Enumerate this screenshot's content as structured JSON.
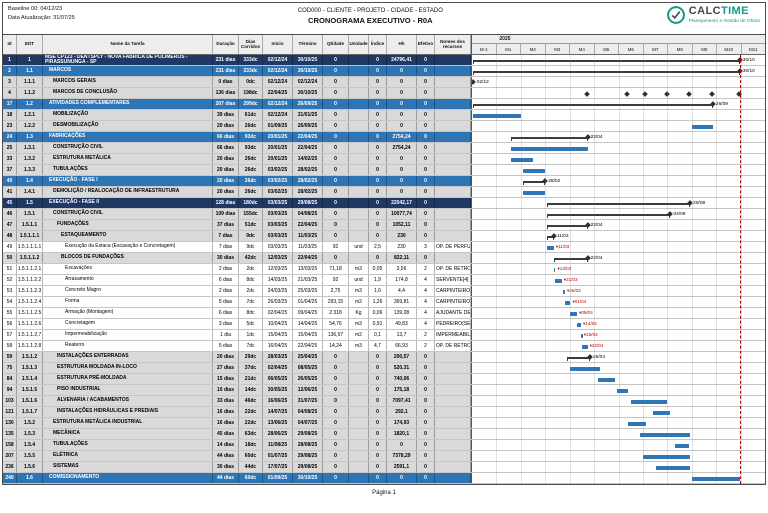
{
  "meta": {
    "baseline": "Baseline 00: 04/12/23",
    "update": "Data Atualização: 31/07/25",
    "code_line": "COD000 - CLIENTE - PROJETO - CIDADE - ESTADO",
    "title": "CRONOGRAMA EXECUTIVO - R0A",
    "footer": "Página 1"
  },
  "logo": {
    "name_part1": "CALC",
    "name_part2": "TIME",
    "tagline": "Planejamento e Gestão de Obras"
  },
  "columns": [
    "Id",
    "EDT",
    "Nome da Tarefa",
    "Duração",
    "Dias Corridos",
    "Início",
    "Término",
    "Qtidade",
    "Unidade",
    "Índice",
    "Hh",
    "Efetivo",
    "Nomes dos recursos"
  ],
  "timeline": {
    "year": "2025",
    "months": [
      "M-1",
      "M1",
      "M2",
      "M3",
      "M4",
      "M5",
      "M6",
      "M7",
      "M8",
      "M9",
      "M10",
      "M11"
    ],
    "finish_line_date": "30/10/25"
  },
  "colors": {
    "project_row": "#1f3864",
    "phase_row": "#2e75b6",
    "summary_row": "#d9d9d9",
    "task_bar": "#2e75b6",
    "summary_bar": "#3b3b3b",
    "annotation_red": "#c00000",
    "logo_teal": "#139a8c"
  },
  "rows": [
    {
      "id": "1",
      "edt": "1",
      "name": "MSE CP123 - DENTSPLY - NOVA FABRICA DE POLÍMEROS - PIRASSUNUNGA - SP",
      "dur": "231 dias",
      "dc": "333dc",
      "start": "02/12/24",
      "end": "30/10/25",
      "qty": "0",
      "unit": "",
      "idx": "0",
      "hh": "24796,41",
      "ef": "0",
      "rec": "",
      "style": "project",
      "level": 0,
      "bar": {
        "type": "summary",
        "label": "30/10",
        "endDiamond": true
      }
    },
    {
      "id": "2",
      "edt": "1.1",
      "name": "MARCOS",
      "dur": "231 dias",
      "dc": "333dc",
      "start": "02/12/24",
      "end": "30/10/25",
      "qty": "0",
      "unit": "",
      "idx": "0",
      "hh": "0",
      "ef": "0",
      "rec": "",
      "style": "phase",
      "level": 1,
      "bar": {
        "type": "summary",
        "label": "30/10",
        "endDiamond": true
      }
    },
    {
      "id": "3",
      "edt": "1.1.1",
      "name": "MARCOS GERAIS",
      "dur": "0 dias",
      "dc": "0dc",
      "start": "02/12/24",
      "end": "02/12/24",
      "qty": "0",
      "unit": "",
      "idx": "0",
      "hh": "0",
      "ef": "0",
      "rec": "",
      "style": "summary",
      "level": 2,
      "bar": {
        "type": "milestone",
        "label": "02/12"
      }
    },
    {
      "id": "4",
      "edt": "1.1.2",
      "name": "MARCOS DE CONCLUSÃO",
      "dur": "136 dias",
      "dc": "198dc",
      "start": "22/04/25",
      "end": "30/10/25",
      "qty": "0",
      "unit": "",
      "idx": "0",
      "hh": "0",
      "ef": "0",
      "rec": "",
      "style": "summary",
      "level": 2,
      "milestones": [
        "22/04/25",
        "12/06/25",
        "04/07/25",
        "31/07/25",
        "29/08/25",
        "26/09/25",
        "30/10/25"
      ]
    },
    {
      "id": "17",
      "edt": "1.2",
      "name": "ATIVIDADES COMPLEMENTARES",
      "dur": "207 dias",
      "dc": "299dc",
      "start": "02/12/24",
      "end": "26/09/25",
      "qty": "0",
      "unit": "",
      "idx": "0",
      "hh": "0",
      "ef": "0",
      "rec": "",
      "style": "phase",
      "level": 1,
      "bar": {
        "type": "summary",
        "label": "26/09",
        "endDiamond": true
      }
    },
    {
      "id": "18",
      "edt": "1.2.1",
      "name": "MOBILIZAÇÃO",
      "dur": "39 dias",
      "dc": "61dc",
      "start": "02/12/24",
      "end": "31/01/25",
      "qty": "0",
      "unit": "",
      "idx": "0",
      "hh": "0",
      "ef": "0",
      "rec": "",
      "style": "summary",
      "level": 2,
      "bar": {
        "type": "task"
      }
    },
    {
      "id": "23",
      "edt": "1.2.2",
      "name": "DESMOBILIZAÇÃO",
      "dur": "20 dias",
      "dc": "26dc",
      "start": "01/09/25",
      "end": "26/09/25",
      "qty": "0",
      "unit": "",
      "idx": "0",
      "hh": "0",
      "ef": "0",
      "rec": "",
      "style": "summary",
      "level": 2,
      "bar": {
        "type": "task"
      }
    },
    {
      "id": "24",
      "edt": "1.3",
      "name": "FABRICAÇÕES",
      "dur": "66 dias",
      "dc": "93dc",
      "start": "20/01/25",
      "end": "22/04/25",
      "qty": "0",
      "unit": "",
      "idx": "0",
      "hh": "2754,24",
      "ef": "0",
      "rec": "",
      "style": "phase",
      "level": 1,
      "bar": {
        "type": "summary",
        "label": "22/04",
        "endDiamond": true
      }
    },
    {
      "id": "25",
      "edt": "1.3.1",
      "name": "CONSTRUÇÃO CIVIL",
      "dur": "66 dias",
      "dc": "93dc",
      "start": "20/01/25",
      "end": "22/04/25",
      "qty": "0",
      "unit": "",
      "idx": "0",
      "hh": "2754,24",
      "ef": "0",
      "rec": "",
      "style": "summary",
      "level": 2,
      "bar": {
        "type": "task"
      }
    },
    {
      "id": "33",
      "edt": "1.3.2",
      "name": "ESTRUTURA METÁLICA",
      "dur": "20 dias",
      "dc": "26dc",
      "start": "20/01/25",
      "end": "14/02/25",
      "qty": "0",
      "unit": "",
      "idx": "0",
      "hh": "0",
      "ef": "0",
      "rec": "",
      "style": "summary",
      "level": 2,
      "bar": {
        "type": "task"
      }
    },
    {
      "id": "37",
      "edt": "1.3.3",
      "name": "TUBULAÇÕES",
      "dur": "20 dias",
      "dc": "26dc",
      "start": "03/02/25",
      "end": "28/02/25",
      "qty": "0",
      "unit": "",
      "idx": "0",
      "hh": "0",
      "ef": "0",
      "rec": "",
      "style": "summary",
      "level": 2,
      "bar": {
        "type": "task"
      }
    },
    {
      "id": "40",
      "edt": "1.4",
      "name": "EXECUÇÃO - FASE I",
      "dur": "20 dias",
      "dc": "26dc",
      "start": "03/02/25",
      "end": "28/02/25",
      "qty": "0",
      "unit": "",
      "idx": "0",
      "hh": "0",
      "ef": "0",
      "rec": "",
      "style": "phase",
      "level": 1,
      "bar": {
        "type": "summary",
        "label": "28/02",
        "endDiamond": true
      }
    },
    {
      "id": "41",
      "edt": "1.4.1",
      "name": "DEMOLIÇÃO / REALOCAÇÃO DE INFRAESTRUTURA",
      "dur": "20 dias",
      "dc": "26dc",
      "start": "03/02/25",
      "end": "28/02/25",
      "qty": "0",
      "unit": "",
      "idx": "0",
      "hh": "0",
      "ef": "0",
      "rec": "",
      "style": "summary",
      "level": 2,
      "bar": {
        "type": "task"
      }
    },
    {
      "id": "45",
      "edt": "1.5",
      "name": "EXECUÇÃO - FASE II",
      "dur": "128 dias",
      "dc": "180dc",
      "start": "03/03/25",
      "end": "29/08/25",
      "qty": "0",
      "unit": "",
      "idx": "0",
      "hh": "22042,17",
      "ef": "0",
      "rec": "",
      "style": "project",
      "level": 1,
      "bar": {
        "type": "summary",
        "label": "29/08",
        "endDiamond": true
      }
    },
    {
      "id": "46",
      "edt": "1.5.1",
      "name": "CONSTRUÇÃO CIVIL",
      "dur": "109 dias",
      "dc": "155dc",
      "start": "03/03/25",
      "end": "04/08/25",
      "qty": "0",
      "unit": "",
      "idx": "0",
      "hh": "10077,74",
      "ef": "0",
      "rec": "",
      "style": "summary",
      "level": 2,
      "bar": {
        "type": "summary",
        "label": "04/08",
        "endDiamond": true
      }
    },
    {
      "id": "47",
      "edt": "1.5.1.1",
      "name": "FUNDAÇÕES",
      "dur": "37 dias",
      "dc": "51dc",
      "start": "03/03/25",
      "end": "22/04/25",
      "qty": "0",
      "unit": "",
      "idx": "0",
      "hh": "1052,11",
      "ef": "0",
      "rec": "",
      "style": "summary",
      "level": 3,
      "bar": {
        "type": "summary",
        "label": "22/04",
        "endDiamond": true
      }
    },
    {
      "id": "48",
      "edt": "1.5.1.1.1",
      "name": "ESTAQUEAMENTO",
      "dur": "7 dias",
      "dc": "9dc",
      "start": "03/03/25",
      "end": "11/03/25",
      "qty": "0",
      "unit": "",
      "idx": "0",
      "hh": "230",
      "ef": "0",
      "rec": "",
      "style": "summary",
      "level": 4,
      "bar": {
        "type": "summary",
        "label": "11/03",
        "endDiamond": true
      }
    },
    {
      "id": "49",
      "edt": "1.5.1.1.1.1",
      "name": "Execução da Estaca (Escavação e Concretagem)",
      "dur": "7 dias",
      "dc": "9dc",
      "start": "03/03/25",
      "end": "11/03/25",
      "qty": "92",
      "unit": "und",
      "idx": "2,5",
      "hh": "230",
      "ef": "3",
      "rec": "OP. DE PERFU",
      "style": "leaf",
      "level": 5,
      "bar": {
        "type": "task"
      },
      "annotation": "11/03"
    },
    {
      "id": "50",
      "edt": "1.5.1.1.2",
      "name": "BLOCOS DE FUNDAÇÕES",
      "dur": "30 dias",
      "dc": "42dc",
      "start": "12/03/25",
      "end": "22/04/25",
      "qty": "0",
      "unit": "",
      "idx": "0",
      "hh": "822,11",
      "ef": "0",
      "rec": "",
      "style": "summary",
      "level": 4,
      "bar": {
        "type": "summary",
        "label": "22/04",
        "endDiamond": true
      }
    },
    {
      "id": "51",
      "edt": "1.5.1.1.2.1",
      "name": "Escavações",
      "dur": "2 dias",
      "dc": "2dc",
      "start": "12/03/25",
      "end": "13/03/25",
      "qty": "71,18",
      "unit": "m3",
      "idx": "0,05",
      "hh": "3,56",
      "ef": "2",
      "rec": "OP. DE RETRO",
      "style": "leaf",
      "level": 5,
      "bar": {
        "type": "task"
      },
      "annotation": "13/03"
    },
    {
      "id": "52",
      "edt": "1.5.1.1.2.2",
      "name": "Arrasamento",
      "dur": "6 dias",
      "dc": "8dc",
      "start": "14/03/25",
      "end": "21/03/25",
      "qty": "92",
      "unit": "und",
      "idx": "1,9",
      "hh": "174,8",
      "ef": "4",
      "rec": "SERVENTE[4]",
      "style": "leaf",
      "level": 5,
      "bar": {
        "type": "task"
      },
      "annotation": "21/03"
    },
    {
      "id": "53",
      "edt": "1.5.1.1.2.3",
      "name": "Concreto Magro",
      "dur": "2 dias",
      "dc": "2dc",
      "start": "24/03/25",
      "end": "25/03/25",
      "qty": "2,75",
      "unit": "m3",
      "idx": "1,6",
      "hh": "4,4",
      "ef": "4",
      "rec": "CARPINTEIRO",
      "style": "leaf",
      "level": 5,
      "bar": {
        "type": "task"
      },
      "annotation": "25/03"
    },
    {
      "id": "54",
      "edt": "1.5.1.1.2.4",
      "name": "Forma",
      "dur": "5 dias",
      "dc": "7dc",
      "start": "26/03/25",
      "end": "01/04/25",
      "qty": "293,15",
      "unit": "m2",
      "idx": "1,26",
      "hh": "369,81",
      "ef": "4",
      "rec": "CARPINTEIRO",
      "style": "leaf",
      "level": 5,
      "bar": {
        "type": "task"
      },
      "annotation": "01/04"
    },
    {
      "id": "55",
      "edt": "1.5.1.1.2.5",
      "name": "Armação (Montagem)",
      "dur": "6 dias",
      "dc": "8dc",
      "start": "02/04/25",
      "end": "09/04/25",
      "qty": "2.318",
      "unit": "Kg",
      "idx": "0,06",
      "hh": "139,08",
      "ef": "4",
      "rec": "AJUDANTE DE",
      "style": "leaf",
      "level": 5,
      "bar": {
        "type": "task"
      },
      "annotation": "09/04"
    },
    {
      "id": "56",
      "edt": "1.5.1.1.2.6",
      "name": "Concretagem",
      "dur": "3 dias",
      "dc": "5dc",
      "start": "10/04/25",
      "end": "14/04/25",
      "qty": "54,76",
      "unit": "m3",
      "idx": "0,91",
      "hh": "49,83",
      "ef": "4",
      "rec": "PEDREIRO(SE",
      "style": "leaf",
      "level": 5,
      "bar": {
        "type": "task"
      },
      "annotation": "14/04"
    },
    {
      "id": "57",
      "edt": "1.5.1.1.2.7",
      "name": "Impermeabilização",
      "dur": "1 dia",
      "dc": "1dc",
      "start": "15/04/25",
      "end": "15/04/25",
      "qty": "136,97",
      "unit": "m2",
      "idx": "0,1",
      "hh": "13,7",
      "ef": "2",
      "rec": "IMPERMEABIL",
      "style": "leaf",
      "level": 5,
      "bar": {
        "type": "task"
      },
      "annotation": "15/04"
    },
    {
      "id": "58",
      "edt": "1.5.1.1.2.8",
      "name": "Reaterro",
      "dur": "5 dias",
      "dc": "7dc",
      "start": "16/04/25",
      "end": "22/04/25",
      "qty": "14,24",
      "unit": "m3",
      "idx": "4,7",
      "hh": "66,93",
      "ef": "2",
      "rec": "OP. DE RETRO",
      "style": "leaf",
      "level": 5,
      "bar": {
        "type": "task"
      },
      "annotation": "22/04"
    },
    {
      "id": "59",
      "edt": "1.5.1.2",
      "name": "INSTALAÇÕES ENTERRADAS",
      "dur": "20 dias",
      "dc": "29dc",
      "start": "28/03/25",
      "end": "25/04/25",
      "qty": "0",
      "unit": "",
      "idx": "0",
      "hh": "200,57",
      "ef": "0",
      "rec": "",
      "style": "summary",
      "level": 3,
      "bar": {
        "type": "summary",
        "label": "25/04",
        "endDiamond": true
      }
    },
    {
      "id": "75",
      "edt": "1.5.1.3",
      "name": "ESTRUTURA MOLDADA IN-LOCO",
      "dur": "27 dias",
      "dc": "37dc",
      "start": "02/04/25",
      "end": "08/05/25",
      "qty": "0",
      "unit": "",
      "idx": "0",
      "hh": "520,31",
      "ef": "0",
      "rec": "",
      "style": "summary",
      "level": 3,
      "bar": {
        "type": "task"
      }
    },
    {
      "id": "84",
      "edt": "1.5.1.4",
      "name": "ESTRUTURA PRÉ-MOLDADA",
      "dur": "15 dias",
      "dc": "21dc",
      "start": "06/05/25",
      "end": "26/05/25",
      "qty": "0",
      "unit": "",
      "idx": "0",
      "hh": "740,06",
      "ef": "0",
      "rec": "",
      "style": "summary",
      "level": 3,
      "bar": {
        "type": "task"
      }
    },
    {
      "id": "94",
      "edt": "1.5.1.5",
      "name": "PISO INDUSTRIAL",
      "dur": "10 dias",
      "dc": "14dc",
      "start": "30/05/25",
      "end": "12/06/25",
      "qty": "0",
      "unit": "",
      "idx": "0",
      "hh": "175,18",
      "ef": "0",
      "rec": "",
      "style": "summary",
      "level": 3,
      "bar": {
        "type": "task"
      }
    },
    {
      "id": "103",
      "edt": "1.5.1.6",
      "name": "ALVENARIA / ACABAMENTOS",
      "dur": "33 dias",
      "dc": "46dc",
      "start": "16/06/25",
      "end": "31/07/25",
      "qty": "0",
      "unit": "",
      "idx": "0",
      "hh": "7097,41",
      "ef": "0",
      "rec": "",
      "style": "summary",
      "level": 3,
      "bar": {
        "type": "task"
      }
    },
    {
      "id": "121",
      "edt": "1.5.1.7",
      "name": "INSTALAÇÕES HIDRÁULICAS E PREDIAIS",
      "dur": "16 dias",
      "dc": "22dc",
      "start": "14/07/25",
      "end": "04/08/25",
      "qty": "0",
      "unit": "",
      "idx": "0",
      "hh": "292,1",
      "ef": "0",
      "rec": "",
      "style": "summary",
      "level": 3,
      "bar": {
        "type": "task"
      }
    },
    {
      "id": "130",
      "edt": "1.5.2",
      "name": "ESTRUTURA METÁLICA INDUSTRIAL",
      "dur": "16 dias",
      "dc": "22dc",
      "start": "13/06/25",
      "end": "04/07/25",
      "qty": "0",
      "unit": "",
      "idx": "0",
      "hh": "174,93",
      "ef": "0",
      "rec": "",
      "style": "summary",
      "level": 2,
      "bar": {
        "type": "task"
      }
    },
    {
      "id": "135",
      "edt": "1.5.3",
      "name": "MECÂNICA",
      "dur": "45 dias",
      "dc": "63dc",
      "start": "28/06/25",
      "end": "29/08/25",
      "qty": "0",
      "unit": "",
      "idx": "0",
      "hh": "1820,1",
      "ef": "0",
      "rec": "",
      "style": "summary",
      "level": 2,
      "bar": {
        "type": "task"
      }
    },
    {
      "id": "158",
      "edt": "1.5.4",
      "name": "TUBULAÇÕES",
      "dur": "14 dias",
      "dc": "18dc",
      "start": "11/08/25",
      "end": "28/08/25",
      "qty": "0",
      "unit": "",
      "idx": "0",
      "hh": "0",
      "ef": "0",
      "rec": "",
      "style": "summary",
      "level": 2,
      "bar": {
        "type": "task"
      }
    },
    {
      "id": "207",
      "edt": "1.5.5",
      "name": "ELÉTRICA",
      "dur": "44 dias",
      "dc": "60dc",
      "start": "01/07/25",
      "end": "29/08/25",
      "qty": "0",
      "unit": "",
      "idx": "0",
      "hh": "7378,29",
      "ef": "0",
      "rec": "",
      "style": "summary",
      "level": 2,
      "bar": {
        "type": "task"
      }
    },
    {
      "id": "236",
      "edt": "1.5.6",
      "name": "SISTEMAS",
      "dur": "30 dias",
      "dc": "44dc",
      "start": "17/07/25",
      "end": "29/08/25",
      "qty": "0",
      "unit": "",
      "idx": "0",
      "hh": "2591,1",
      "ef": "0",
      "rec": "",
      "style": "summary",
      "level": 2,
      "bar": {
        "type": "task"
      }
    },
    {
      "id": "240",
      "edt": "1.6",
      "name": "COMISSIONAMENTO",
      "dur": "44 dias",
      "dc": "60dc",
      "start": "01/09/25",
      "end": "30/10/25",
      "qty": "0",
      "unit": "",
      "idx": "0",
      "hh": "0",
      "ef": "0",
      "rec": "",
      "style": "phase",
      "level": 1,
      "bar": {
        "type": "task"
      }
    }
  ]
}
